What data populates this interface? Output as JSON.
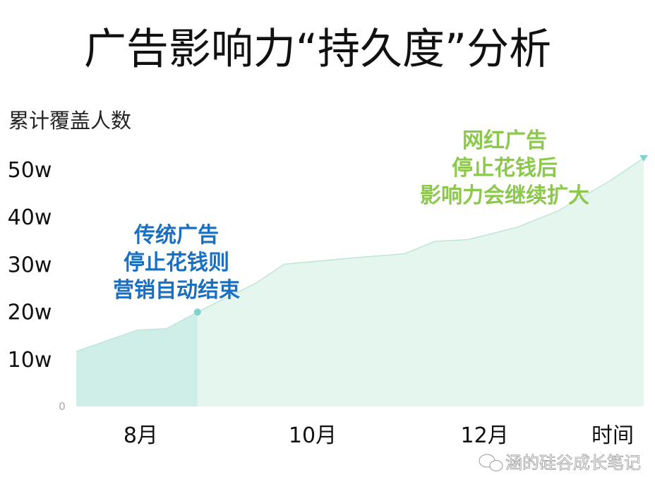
{
  "chart_data": {
    "type": "area",
    "title": "广告影响力“持久度”分析",
    "ylabel": "累计覆盖人数",
    "xlabel": "时间",
    "y_ticks": [
      "0",
      "10w",
      "20w",
      "30w",
      "40w",
      "50w"
    ],
    "y_tick_values": [
      0,
      10,
      20,
      30,
      40,
      50
    ],
    "x_ticks": [
      "8月",
      "10月",
      "12月"
    ],
    "x_tick_values": [
      8,
      10,
      12
    ],
    "xlim": [
      7.25,
      13.85
    ],
    "ylim": [
      0,
      50
    ],
    "grid": false,
    "x": [
      7.27,
      7.96,
      8.3,
      8.66,
      9.34,
      9.67,
      10.39,
      11.07,
      11.42,
      11.81,
      12.38,
      12.85,
      13.46,
      13.83
    ],
    "values": [
      11.6,
      16.1,
      16.4,
      19.9,
      26,
      30,
      31.2,
      32.2,
      34.8,
      35.2,
      37.8,
      41.2,
      47.6,
      52.4
    ],
    "stop_point_x": 8.66,
    "colors": {
      "area_before_stop": "#cfeee7",
      "area_after_stop": "#e5f6ef",
      "line": "#bfe5da",
      "marker": "#7fd4cf",
      "annotation_traditional": "#1a6fc0",
      "annotation_influencer": "#8cc84b"
    },
    "annotations": {
      "traditional": [
        "传统广告",
        "停止花钱则",
        "营销自动结束"
      ],
      "influencer": [
        "网红广告",
        "停止花钱后",
        "影响力会继续扩大"
      ]
    }
  },
  "watermark": "涵的硅谷成长笔记"
}
